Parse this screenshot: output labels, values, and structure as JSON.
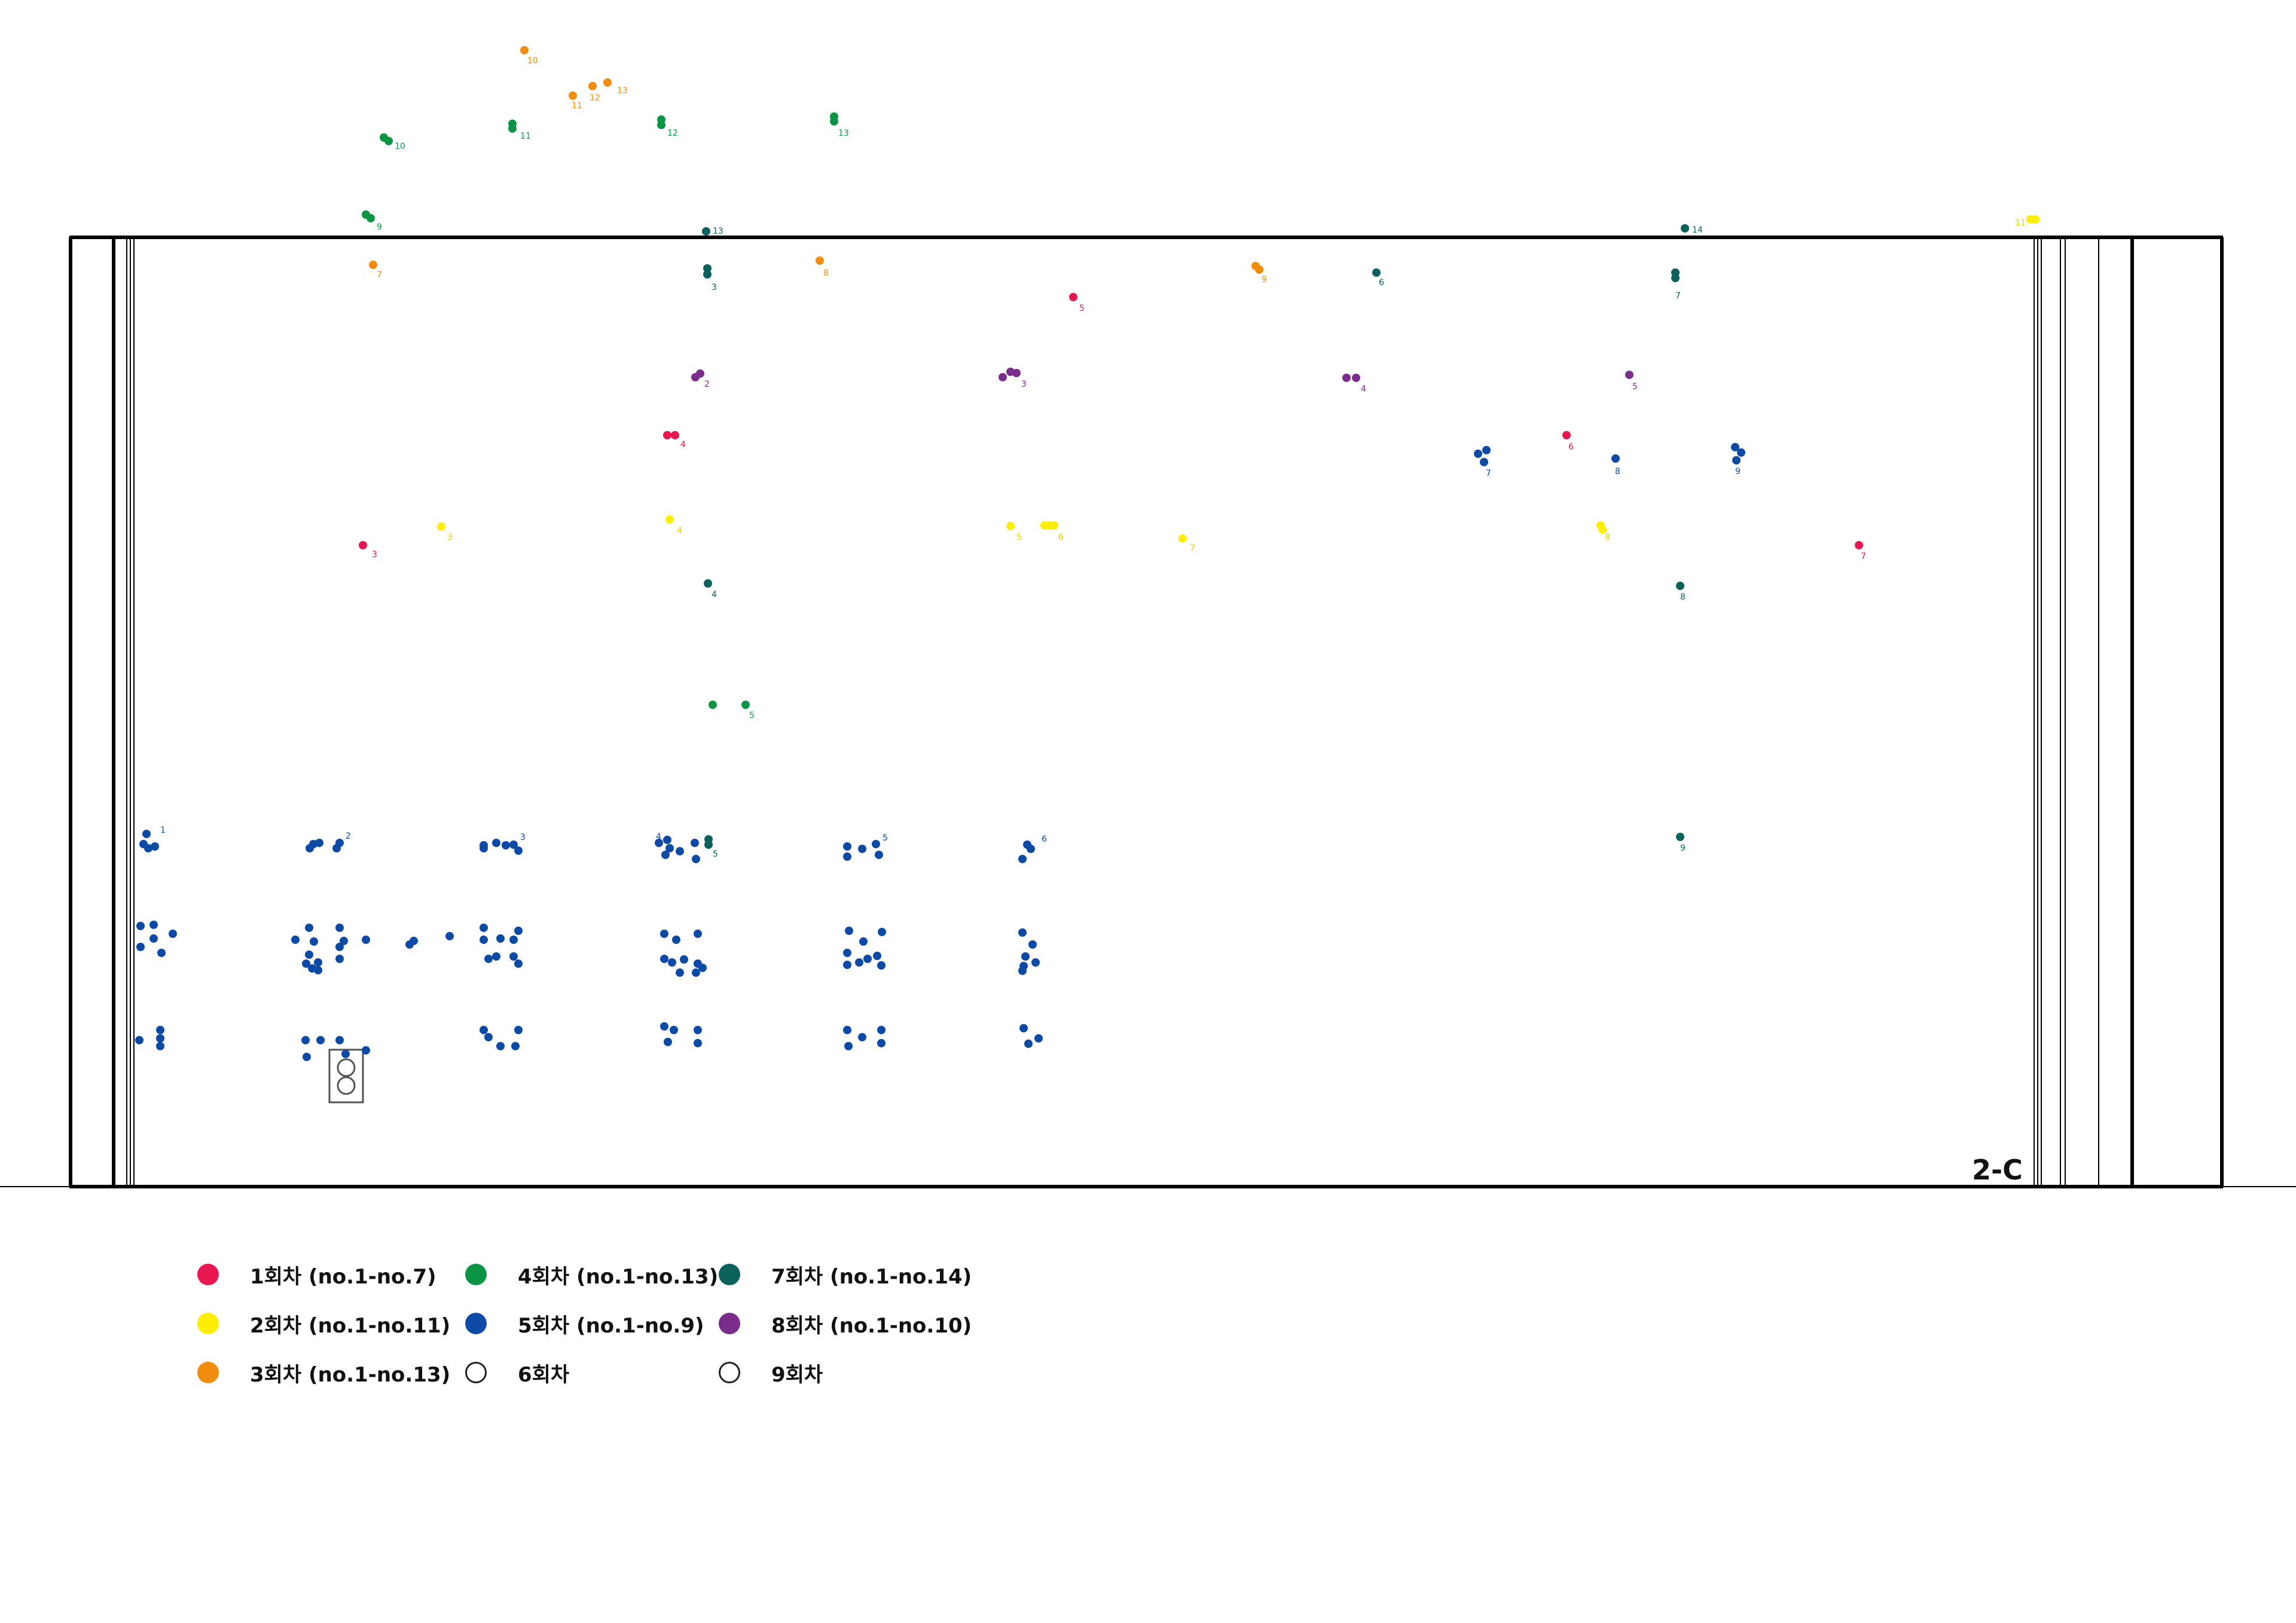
{
  "panel_label": "2-C",
  "legend": [
    {
      "label": "1회차 (no.1-no.7)",
      "color": "#e8174f",
      "hollow": false
    },
    {
      "label": "2회차 (no.1-no.11)",
      "color": "#ffee00",
      "hollow": false
    },
    {
      "label": "3회차 (no.1-no.13)",
      "color": "#f28c0f",
      "hollow": false
    },
    {
      "label": "4회차 (no.1-no.13)",
      "color": "#0a9444",
      "hollow": false
    },
    {
      "label": "5회차 (no.1-no.9)",
      "color": "#0c4aa6",
      "hollow": false
    },
    {
      "label": "6회차",
      "color": "#ffffff",
      "hollow": true
    },
    {
      "label": "7회차 (no.1-no.14)",
      "color": "#0b625d",
      "hollow": false
    },
    {
      "label": "8회차 (no.1-no.10)",
      "color": "#7a2e8c",
      "hollow": false
    },
    {
      "label": "9회차",
      "color": "#ffffff",
      "hollow": true
    }
  ],
  "markers": [
    {
      "series": "1회차",
      "color": "#e8174f",
      "label": "3"
    },
    {
      "series": "1회차",
      "color": "#e8174f",
      "label": "4"
    },
    {
      "series": "1회차",
      "color": "#e8174f",
      "label": "5"
    },
    {
      "series": "1회차",
      "color": "#e8174f",
      "label": "6"
    },
    {
      "series": "1회차",
      "color": "#e8174f",
      "label": "7"
    },
    {
      "series": "2회차",
      "color": "#ffee00",
      "label": "3"
    },
    {
      "series": "2회차",
      "color": "#ffee00",
      "label": "4"
    },
    {
      "series": "2회차",
      "color": "#ffee00",
      "label": "5"
    },
    {
      "series": "2회차",
      "color": "#ffee00",
      "label": "6"
    },
    {
      "series": "2회차",
      "color": "#ffee00",
      "label": "7"
    },
    {
      "series": "2회차",
      "color": "#ffee00",
      "label": "8"
    },
    {
      "series": "2회차",
      "color": "#ffee00",
      "label": "11"
    },
    {
      "series": "3회차",
      "color": "#f28c0f",
      "label": "7"
    },
    {
      "series": "3회차",
      "color": "#f28c0f",
      "label": "8"
    },
    {
      "series": "3회차",
      "color": "#f28c0f",
      "label": "9"
    },
    {
      "series": "3회차",
      "color": "#f28c0f",
      "label": "10"
    },
    {
      "series": "3회차",
      "color": "#f28c0f",
      "label": "11"
    },
    {
      "series": "3회차",
      "color": "#f28c0f",
      "label": "12"
    },
    {
      "series": "3회차",
      "color": "#f28c0f",
      "label": "13"
    },
    {
      "series": "4회차",
      "color": "#0a9444",
      "label": "5"
    },
    {
      "series": "4회차",
      "color": "#0a9444",
      "label": "9"
    },
    {
      "series": "4회차",
      "color": "#0a9444",
      "label": "10"
    },
    {
      "series": "4회차",
      "color": "#0a9444",
      "label": "11"
    },
    {
      "series": "4회차",
      "color": "#0a9444",
      "label": "12"
    },
    {
      "series": "4회차",
      "color": "#0a9444",
      "label": "13"
    },
    {
      "series": "7회차",
      "color": "#0b625d",
      "label": "3"
    },
    {
      "series": "7회차",
      "color": "#0b625d",
      "label": "4"
    },
    {
      "series": "7회차",
      "color": "#0b625d",
      "label": "5"
    },
    {
      "series": "7회차",
      "color": "#0b625d",
      "label": "6"
    },
    {
      "series": "7회차",
      "color": "#0b625d",
      "label": "7"
    },
    {
      "series": "7회차",
      "color": "#0b625d",
      "label": "8"
    },
    {
      "series": "7회차",
      "color": "#0b625d",
      "label": "9"
    },
    {
      "series": "7회차",
      "color": "#0b625d",
      "label": "13"
    },
    {
      "series": "7회차",
      "color": "#0b625d",
      "label": "14"
    },
    {
      "series": "8회차",
      "color": "#7a2e8c",
      "label": "2"
    },
    {
      "series": "8회차",
      "color": "#7a2e8c",
      "label": "3"
    },
    {
      "series": "8회차",
      "color": "#7a2e8c",
      "label": "4"
    },
    {
      "series": "8회차",
      "color": "#7a2e8c",
      "label": "5"
    },
    {
      "series": "5회차",
      "color": "#0c4aa6",
      "label": "1"
    },
    {
      "series": "5회차",
      "color": "#0c4aa6",
      "label": "2"
    },
    {
      "series": "5회차",
      "color": "#0c4aa6",
      "label": "3"
    },
    {
      "series": "5회차",
      "color": "#0c4aa6",
      "label": "4"
    },
    {
      "series": "5회차",
      "color": "#0c4aa6",
      "label": "5"
    },
    {
      "series": "5회차",
      "color": "#0c4aa6",
      "label": "6"
    },
    {
      "series": "5회차",
      "color": "#0c4aa6",
      "label": "7"
    },
    {
      "series": "5회차",
      "color": "#0c4aa6",
      "label": "8"
    },
    {
      "series": "5회차",
      "color": "#0c4aa6",
      "label": "9"
    }
  ]
}
